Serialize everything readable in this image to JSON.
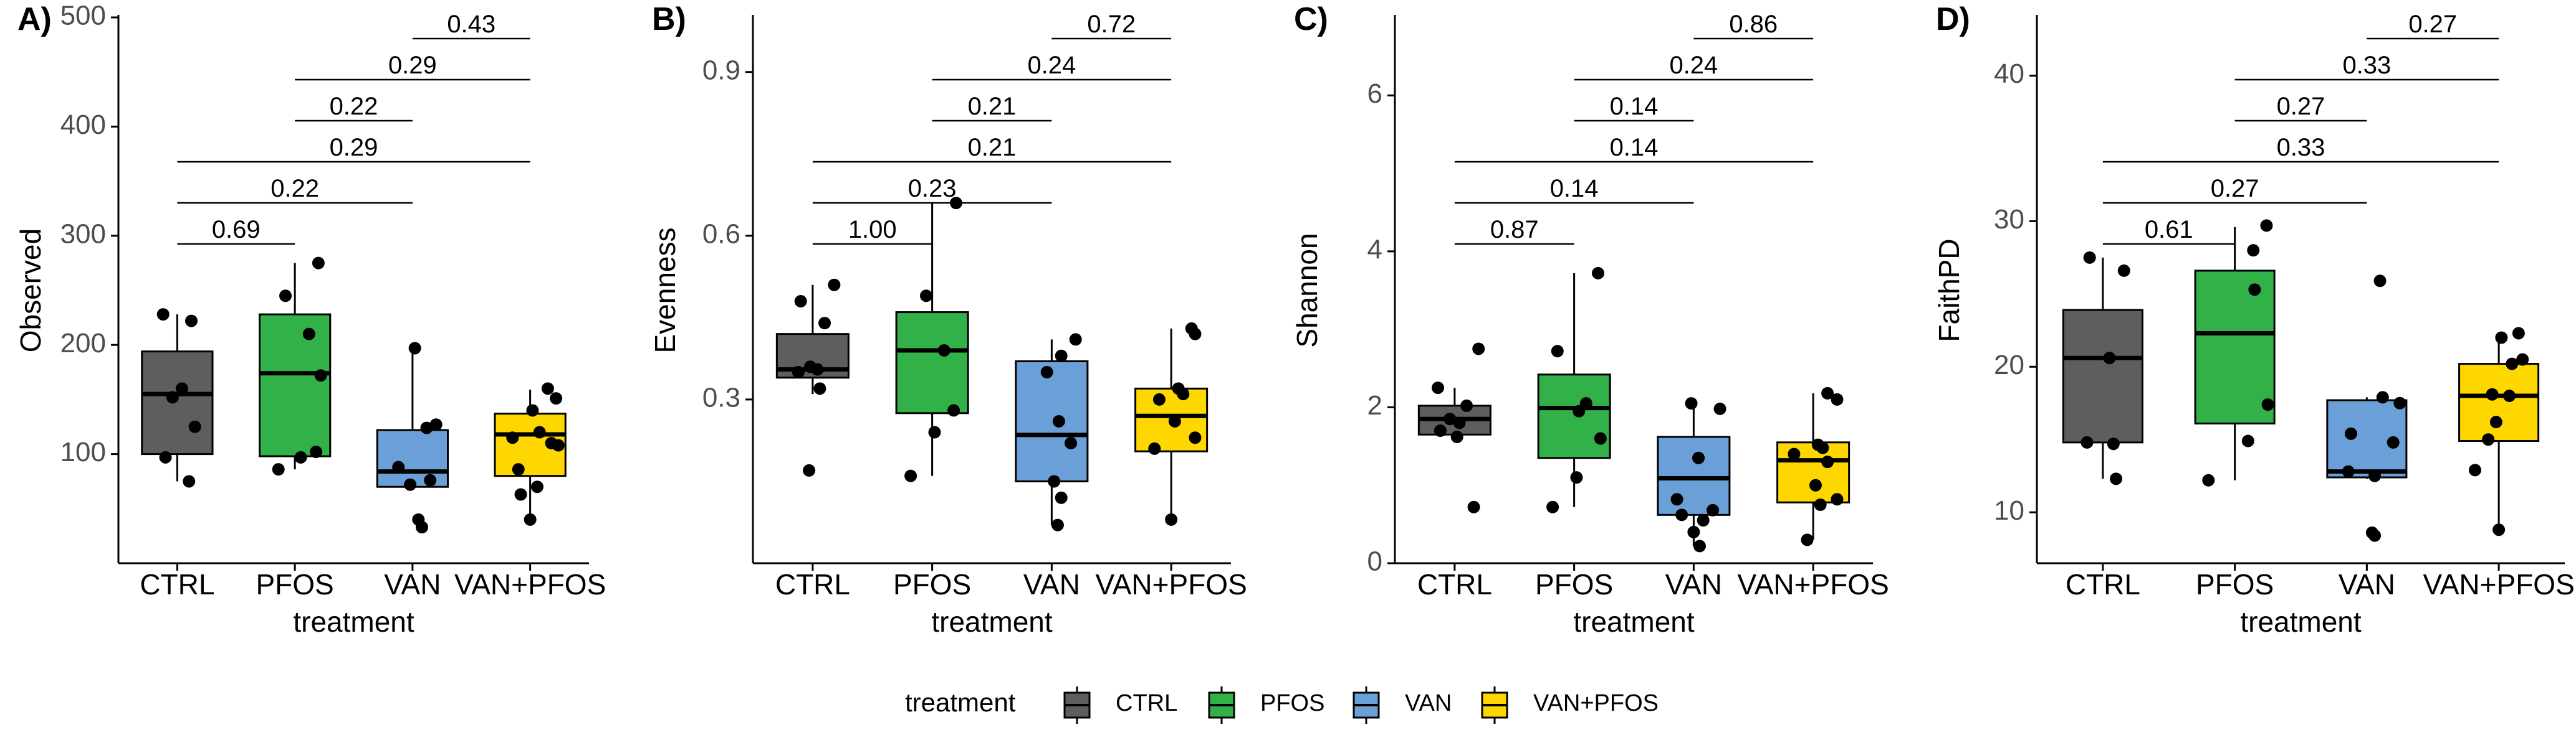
{
  "legend": {
    "title": "treatment",
    "items": [
      "CTRL",
      "PFOS",
      "VAN",
      "VAN+PFOS"
    ]
  },
  "colors": {
    "CTRL": "#5e5e5e",
    "PFOS": "#33b149",
    "VAN": "#6a9fd8",
    "VAN+PFOS": "#ffd700",
    "axis": "#000000"
  },
  "chart_data": [
    {
      "type": "box",
      "panel_label": "A)",
      "xlabel": "treatment",
      "ylabel": "Observed",
      "categories": [
        "CTRL",
        "PFOS",
        "VAN",
        "VAN+PFOS"
      ],
      "ylim": [
        0,
        500
      ],
      "yticks": [
        100,
        200,
        300,
        400,
        500
      ],
      "boxes": [
        {
          "min": 75,
          "q1": 100,
          "median": 155,
          "q3": 194,
          "max": 228
        },
        {
          "min": 86,
          "q1": 98,
          "median": 174,
          "q3": 228,
          "max": 275
        },
        {
          "min": 70,
          "q1": 70,
          "median": 84,
          "q3": 122,
          "max": 197
        },
        {
          "min": 39,
          "q1": 80,
          "median": 118,
          "q3": 137,
          "max": 159
        }
      ],
      "points": [
        [
          [
            -0.12,
            228
          ],
          [
            0.12,
            222
          ],
          [
            0.04,
            160
          ],
          [
            -0.04,
            152
          ],
          [
            0.15,
            125
          ],
          [
            -0.1,
            97
          ],
          [
            0.1,
            75
          ]
        ],
        [
          [
            -0.08,
            245
          ],
          [
            0.2,
            275
          ],
          [
            0.12,
            210
          ],
          [
            0.22,
            172
          ],
          [
            0.18,
            102
          ],
          [
            -0.14,
            86
          ],
          [
            0.05,
            97
          ]
        ],
        [
          [
            0.02,
            197
          ],
          [
            0.2,
            127
          ],
          [
            0.12,
            124
          ],
          [
            -0.12,
            88
          ],
          [
            -0.02,
            72
          ],
          [
            0.15,
            76
          ],
          [
            0.05,
            40
          ],
          [
            0.08,
            33
          ]
        ],
        [
          [
            0.15,
            160
          ],
          [
            0.22,
            151
          ],
          [
            0.02,
            140
          ],
          [
            0.08,
            120
          ],
          [
            -0.15,
            115
          ],
          [
            0.18,
            110
          ],
          [
            0.24,
            108
          ],
          [
            -0.1,
            86
          ],
          [
            -0.08,
            63
          ],
          [
            0.06,
            70
          ],
          [
            0.0,
            40
          ]
        ]
      ],
      "comparisons": [
        {
          "from": 0,
          "to": 1,
          "label": "0.69"
        },
        {
          "from": 0,
          "to": 2,
          "label": "0.22"
        },
        {
          "from": 0,
          "to": 3,
          "label": "0.29"
        },
        {
          "from": 1,
          "to": 2,
          "label": "0.22"
        },
        {
          "from": 1,
          "to": 3,
          "label": "0.29"
        },
        {
          "from": 2,
          "to": 3,
          "label": "0.43"
        }
      ]
    },
    {
      "type": "box",
      "panel_label": "B)",
      "xlabel": "treatment",
      "ylabel": "Evenness",
      "categories": [
        "CTRL",
        "PFOS",
        "VAN",
        "VAN+PFOS"
      ],
      "ylim": [
        0.0,
        1.0
      ],
      "yticks": [
        0.3,
        0.6,
        0.9
      ],
      "boxes": [
        {
          "min": 0.31,
          "q1": 0.34,
          "median": 0.355,
          "q3": 0.42,
          "max": 0.51
        },
        {
          "min": 0.16,
          "q1": 0.275,
          "median": 0.39,
          "q3": 0.46,
          "max": 0.66
        },
        {
          "min": 0.07,
          "q1": 0.15,
          "median": 0.235,
          "q3": 0.37,
          "max": 0.41
        },
        {
          "min": 0.08,
          "q1": 0.205,
          "median": 0.27,
          "q3": 0.32,
          "max": 0.43
        }
      ],
      "points": [
        [
          [
            0.18,
            0.51
          ],
          [
            -0.1,
            0.48
          ],
          [
            0.1,
            0.44
          ],
          [
            -0.02,
            0.36
          ],
          [
            0.04,
            0.355
          ],
          [
            -0.12,
            0.35
          ],
          [
            0.06,
            0.32
          ],
          [
            -0.03,
            0.17
          ]
        ],
        [
          [
            0.2,
            0.66
          ],
          [
            -0.05,
            0.49
          ],
          [
            0.1,
            0.39
          ],
          [
            0.18,
            0.28
          ],
          [
            0.02,
            0.24
          ],
          [
            -0.18,
            0.16
          ]
        ],
        [
          [
            0.2,
            0.41
          ],
          [
            0.08,
            0.38
          ],
          [
            -0.04,
            0.35
          ],
          [
            0.06,
            0.26
          ],
          [
            0.16,
            0.22
          ],
          [
            0.02,
            0.15
          ],
          [
            0.08,
            0.12
          ],
          [
            0.05,
            0.07
          ]
        ],
        [
          [
            0.17,
            0.43
          ],
          [
            0.2,
            0.42
          ],
          [
            0.06,
            0.32
          ],
          [
            0.1,
            0.31
          ],
          [
            -0.1,
            0.3
          ],
          [
            0.03,
            0.26
          ],
          [
            0.2,
            0.23
          ],
          [
            -0.14,
            0.21
          ],
          [
            0.0,
            0.08
          ]
        ]
      ],
      "comparisons": [
        {
          "from": 0,
          "to": 1,
          "label": "1.00"
        },
        {
          "from": 0,
          "to": 2,
          "label": "0.23"
        },
        {
          "from": 0,
          "to": 3,
          "label": "0.21"
        },
        {
          "from": 1,
          "to": 2,
          "label": "0.21"
        },
        {
          "from": 1,
          "to": 3,
          "label": "0.24"
        },
        {
          "from": 2,
          "to": 3,
          "label": "0.72"
        }
      ]
    },
    {
      "type": "box",
      "panel_label": "C)",
      "xlabel": "treatment",
      "ylabel": "Shannon",
      "categories": [
        "CTRL",
        "PFOS",
        "VAN",
        "VAN+PFOS"
      ],
      "ylim": [
        0,
        7
      ],
      "yticks": [
        0,
        2,
        4,
        6
      ],
      "boxes": [
        {
          "min": 1.55,
          "q1": 1.65,
          "median": 1.85,
          "q3": 2.02,
          "max": 2.25
        },
        {
          "min": 0.72,
          "q1": 1.35,
          "median": 1.99,
          "q3": 2.42,
          "max": 3.72
        },
        {
          "min": 0.22,
          "q1": 0.62,
          "median": 1.09,
          "q3": 1.62,
          "max": 2.05
        },
        {
          "min": 0.3,
          "q1": 0.78,
          "median": 1.32,
          "q3": 1.55,
          "max": 2.18
        }
      ],
      "points": [
        [
          [
            0.2,
            2.75
          ],
          [
            -0.14,
            2.25
          ],
          [
            0.1,
            2.02
          ],
          [
            -0.04,
            1.85
          ],
          [
            0.04,
            1.8
          ],
          [
            -0.12,
            1.7
          ],
          [
            0.02,
            1.62
          ],
          [
            0.16,
            0.72
          ]
        ],
        [
          [
            0.2,
            3.72
          ],
          [
            -0.14,
            2.72
          ],
          [
            0.1,
            2.05
          ],
          [
            0.04,
            1.95
          ],
          [
            0.22,
            1.6
          ],
          [
            0.02,
            1.1
          ],
          [
            -0.18,
            0.72
          ]
        ],
        [
          [
            -0.02,
            2.05
          ],
          [
            0.22,
            1.98
          ],
          [
            0.04,
            1.35
          ],
          [
            -0.14,
            0.82
          ],
          [
            0.16,
            0.68
          ],
          [
            -0.1,
            0.62
          ],
          [
            0.08,
            0.55
          ],
          [
            0.0,
            0.4
          ],
          [
            0.05,
            0.22
          ]
        ],
        [
          [
            0.12,
            2.18
          ],
          [
            0.2,
            2.1
          ],
          [
            0.04,
            1.52
          ],
          [
            0.08,
            1.48
          ],
          [
            -0.16,
            1.4
          ],
          [
            0.12,
            1.3
          ],
          [
            0.02,
            1.0
          ],
          [
            0.2,
            0.82
          ],
          [
            0.06,
            0.75
          ],
          [
            -0.05,
            0.3
          ]
        ]
      ],
      "comparisons": [
        {
          "from": 0,
          "to": 1,
          "label": "0.87"
        },
        {
          "from": 0,
          "to": 2,
          "label": "0.14"
        },
        {
          "from": 0,
          "to": 3,
          "label": "0.14"
        },
        {
          "from": 1,
          "to": 2,
          "label": "0.14"
        },
        {
          "from": 1,
          "to": 3,
          "label": "0.24"
        },
        {
          "from": 2,
          "to": 3,
          "label": "0.86"
        }
      ]
    },
    {
      "type": "box",
      "panel_label": "D)",
      "xlabel": "treatment",
      "ylabel": "FaithPD",
      "categories": [
        "CTRL",
        "PFOS",
        "VAN",
        "VAN+PFOS"
      ],
      "ylim": [
        6.5,
        44
      ],
      "yticks": [
        10,
        20,
        30,
        40
      ],
      "boxes": [
        {
          "min": 12.3,
          "q1": 14.8,
          "median": 20.6,
          "q3": 23.9,
          "max": 27.5
        },
        {
          "min": 12.2,
          "q1": 16.1,
          "median": 22.3,
          "q3": 26.6,
          "max": 29.6
        },
        {
          "min": 12.3,
          "q1": 12.4,
          "median": 12.8,
          "q3": 17.7,
          "max": 17.9
        },
        {
          "min": 8.8,
          "q1": 14.9,
          "median": 18.0,
          "q3": 20.2,
          "max": 22.3
        }
      ],
      "points": [
        [
          [
            -0.1,
            27.5
          ],
          [
            0.16,
            26.6
          ],
          [
            0.05,
            20.6
          ],
          [
            -0.12,
            14.8
          ],
          [
            0.08,
            14.7
          ],
          [
            0.1,
            12.3
          ]
        ],
        [
          [
            0.14,
            28.0
          ],
          [
            0.24,
            29.7
          ],
          [
            0.15,
            25.3
          ],
          [
            0.25,
            17.4
          ],
          [
            0.1,
            14.9
          ],
          [
            -0.2,
            12.2
          ]
        ],
        [
          [
            0.1,
            25.9
          ],
          [
            0.12,
            17.9
          ],
          [
            0.25,
            17.5
          ],
          [
            -0.12,
            15.4
          ],
          [
            0.2,
            14.8
          ],
          [
            -0.14,
            12.8
          ],
          [
            0.06,
            12.5
          ],
          [
            0.04,
            8.6
          ],
          [
            0.06,
            8.4
          ]
        ],
        [
          [
            0.15,
            22.3
          ],
          [
            0.02,
            22.0
          ],
          [
            0.18,
            20.5
          ],
          [
            0.1,
            20.2
          ],
          [
            -0.05,
            18.1
          ],
          [
            0.08,
            18.0
          ],
          [
            -0.02,
            16.2
          ],
          [
            -0.08,
            15.0
          ],
          [
            -0.18,
            12.9
          ],
          [
            0.0,
            8.8
          ]
        ]
      ],
      "comparisons": [
        {
          "from": 0,
          "to": 1,
          "label": "0.61"
        },
        {
          "from": 0,
          "to": 2,
          "label": "0.27"
        },
        {
          "from": 0,
          "to": 3,
          "label": "0.33"
        },
        {
          "from": 1,
          "to": 2,
          "label": "0.27"
        },
        {
          "from": 1,
          "to": 3,
          "label": "0.33"
        },
        {
          "from": 2,
          "to": 3,
          "label": "0.27"
        }
      ]
    }
  ]
}
